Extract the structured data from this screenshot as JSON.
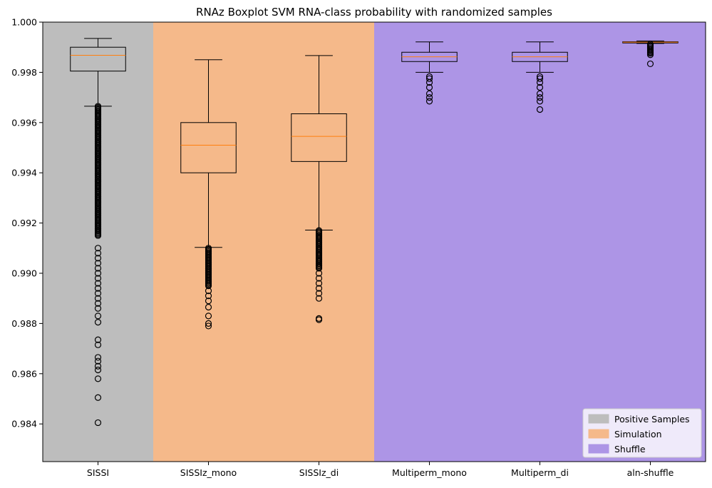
{
  "chart_data": {
    "type": "boxplot",
    "title": "RNAz Boxplot SVM RNA-class probability with randomized samples",
    "xlabel": "",
    "ylabel": "",
    "ylim": [
      0.9825,
      1.0
    ],
    "yticks": [
      0.984,
      0.986,
      0.988,
      0.99,
      0.992,
      0.994,
      0.996,
      0.998,
      1.0
    ],
    "ytick_labels": [
      "0.984",
      "0.986",
      "0.988",
      "0.990",
      "0.992",
      "0.994",
      "0.996",
      "0.998",
      "1.000"
    ],
    "grid": false,
    "legend_position": "lower-right",
    "categories": [
      "SISSI",
      "SISSIz_mono",
      "SISSIz_di",
      "Multiperm_mono",
      "Multiperm_di",
      "aln-shuffle"
    ],
    "regions": [
      {
        "label": "Positive Samples",
        "color": "#bdbdbd",
        "from_index": 0,
        "to_index": 0
      },
      {
        "label": "Simulation",
        "color": "#f5b98a",
        "from_index": 1,
        "to_index": 2
      },
      {
        "label": "Shuffle",
        "color": "#ad95e6",
        "from_index": 3,
        "to_index": 5
      }
    ],
    "boxes": [
      {
        "name": "SISSI",
        "whisker_low": 0.99665,
        "q1": 0.99805,
        "median": 0.99868,
        "q3": 0.999,
        "whisker_high": 0.99935,
        "outliers_dense_range": [
          0.9915,
          0.99665
        ],
        "outliers": [
          0.991,
          0.9908,
          0.9906,
          0.9904,
          0.9902,
          0.99,
          0.9898,
          0.9896,
          0.9894,
          0.9892,
          0.989,
          0.9888,
          0.9886,
          0.9883,
          0.98805,
          0.98735,
          0.98715,
          0.98665,
          0.9865,
          0.9863,
          0.98615,
          0.9858,
          0.98505,
          0.98405
        ]
      },
      {
        "name": "SISSIz_mono",
        "whisker_low": 0.99103,
        "q1": 0.994,
        "median": 0.9951,
        "q3": 0.996,
        "whisker_high": 0.9985,
        "outliers_dense_range": [
          0.9895,
          0.991
        ],
        "outliers": [
          0.9893,
          0.9891,
          0.9889,
          0.98865,
          0.9883,
          0.988,
          0.9879
        ]
      },
      {
        "name": "SISSIz_di",
        "whisker_low": 0.99172,
        "q1": 0.99445,
        "median": 0.99545,
        "q3": 0.99635,
        "whisker_high": 0.99867,
        "outliers_dense_range": [
          0.9902,
          0.9917
        ],
        "outliers": [
          0.99,
          0.9898,
          0.9896,
          0.9894,
          0.9892,
          0.989,
          0.9882,
          0.98815
        ]
      },
      {
        "name": "Multiperm_mono",
        "whisker_low": 0.998,
        "q1": 0.99843,
        "median": 0.99862,
        "q3": 0.9988,
        "whisker_high": 0.99921,
        "outliers_dense_range": [],
        "outliers": [
          0.99783,
          0.99775,
          0.9976,
          0.9974,
          0.99715,
          0.997,
          0.99685
        ]
      },
      {
        "name": "Multiperm_di",
        "whisker_low": 0.998,
        "q1": 0.99843,
        "median": 0.99862,
        "q3": 0.9988,
        "whisker_high": 0.99921,
        "outliers_dense_range": [],
        "outliers": [
          0.99783,
          0.99775,
          0.9976,
          0.9974,
          0.99715,
          0.997,
          0.99685,
          0.99652
        ]
      },
      {
        "name": "aln-shuffle",
        "whisker_low": 0.99915,
        "q1": 0.99917,
        "median": 0.9992,
        "q3": 0.99922,
        "whisker_high": 0.99925,
        "outliers_dense_range": [
          0.9988,
          0.99912
        ],
        "outliers": [
          0.99876,
          0.9987,
          0.99834
        ]
      }
    ],
    "colors": {
      "box_edge": "#000000",
      "median": "#ff7f0e",
      "outlier_edge": "#000000"
    }
  }
}
